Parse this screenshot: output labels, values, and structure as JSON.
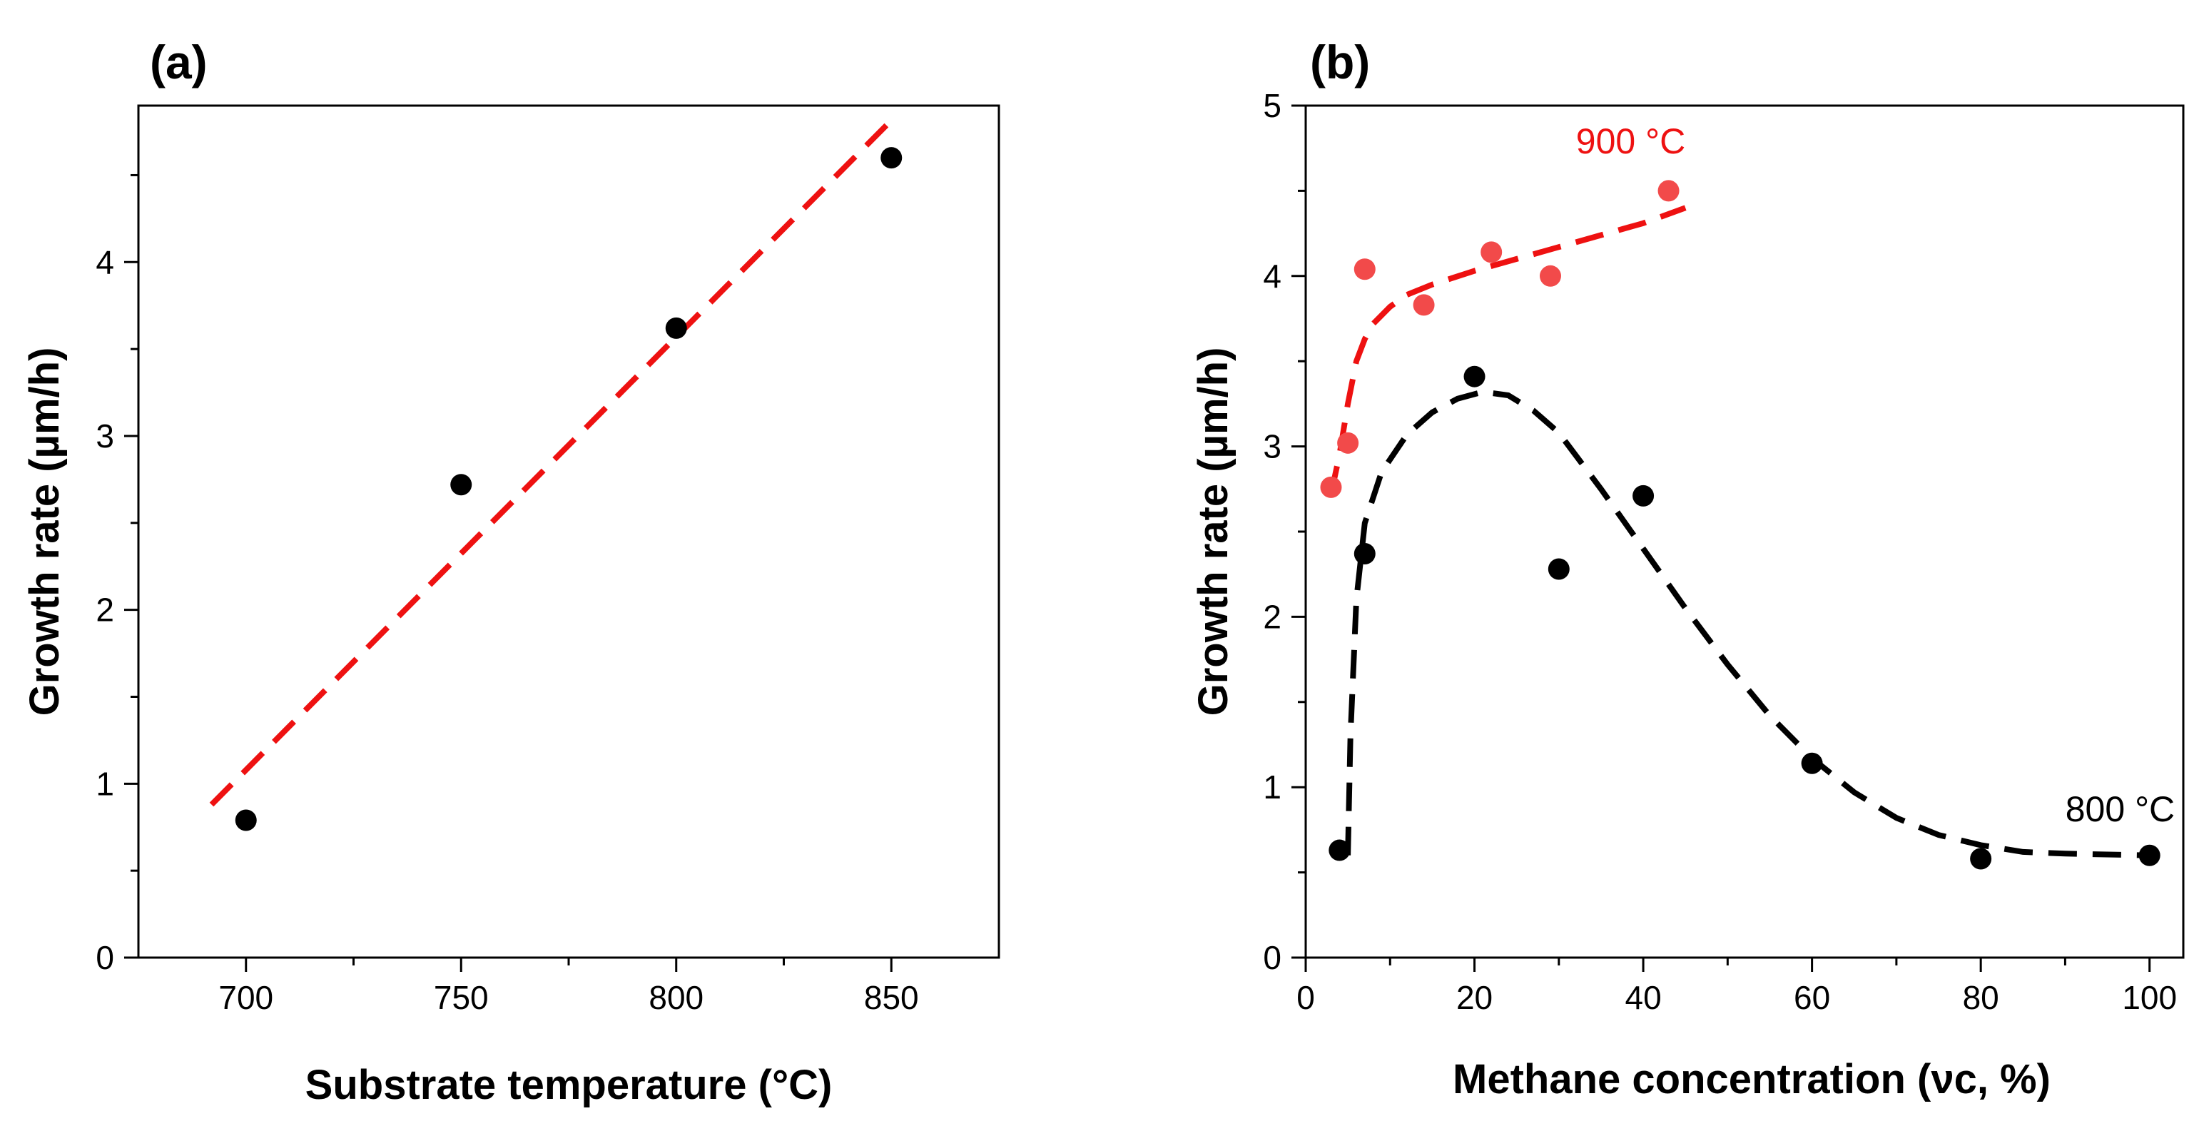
{
  "chart_data": [
    {
      "panel_label": "(a)",
      "type": "scatter",
      "xlabel": "Substrate temperature (°C)",
      "ylabel": "Growth rate (µm/h)",
      "xlim": [
        675,
        875
      ],
      "ylim": [
        0,
        4.9
      ],
      "x_ticks": [
        700,
        750,
        800,
        850
      ],
      "x_tick_labels": [
        "700",
        "750",
        "800",
        "850"
      ],
      "x_minor_ticks": [
        725,
        775,
        825
      ],
      "y_ticks": [
        0,
        1,
        2,
        3,
        4
      ],
      "y_tick_labels": [
        "0",
        "1",
        "2",
        "3",
        "4"
      ],
      "y_minor_ticks": [
        0.5,
        1.5,
        2.5,
        3.5,
        4.5
      ],
      "series": [
        {
          "name": "data",
          "color": "#000000",
          "points": [
            {
              "x": 700,
              "y": 0.79
            },
            {
              "x": 750,
              "y": 2.72
            },
            {
              "x": 800,
              "y": 3.62
            },
            {
              "x": 850,
              "y": 4.6
            }
          ]
        }
      ],
      "fits": [
        {
          "name": "linear fit",
          "color": "#ee1111",
          "points": [
            [
              692,
              0.88
            ],
            [
              851,
              4.84
            ]
          ]
        }
      ],
      "annotations": []
    },
    {
      "panel_label": "(b)",
      "type": "scatter",
      "xlabel": "Methane concentration (νc, %)",
      "ylabel": "Growth rate (µm/h)",
      "xlim": [
        0,
        104
      ],
      "ylim": [
        0,
        5
      ],
      "x_ticks": [
        0,
        20,
        40,
        60,
        80,
        100
      ],
      "x_tick_labels": [
        "0",
        "20",
        "40",
        "60",
        "80",
        "100"
      ],
      "x_minor_ticks": [
        10,
        30,
        50,
        70,
        90
      ],
      "y_ticks": [
        0,
        1,
        2,
        3,
        4,
        5
      ],
      "y_tick_labels": [
        "0",
        "1",
        "2",
        "3",
        "4",
        "5"
      ],
      "y_minor_ticks": [
        0.5,
        1.5,
        2.5,
        3.5,
        4.5
      ],
      "series": [
        {
          "name": "900 °C",
          "color": "#f24a4a",
          "points": [
            {
              "x": 3,
              "y": 2.76
            },
            {
              "x": 5,
              "y": 3.02
            },
            {
              "x": 7,
              "y": 4.04
            },
            {
              "x": 14,
              "y": 3.83
            },
            {
              "x": 22,
              "y": 4.14
            },
            {
              "x": 29,
              "y": 4.0
            },
            {
              "x": 43,
              "y": 4.5
            }
          ]
        },
        {
          "name": "800 °C",
          "color": "#000000",
          "points": [
            {
              "x": 4,
              "y": 0.63
            },
            {
              "x": 7,
              "y": 2.37
            },
            {
              "x": 20,
              "y": 3.41
            },
            {
              "x": 30,
              "y": 2.28
            },
            {
              "x": 40,
              "y": 2.71
            },
            {
              "x": 60,
              "y": 1.14
            },
            {
              "x": 80,
              "y": 0.58
            },
            {
              "x": 100,
              "y": 0.6
            }
          ]
        }
      ],
      "fits": [
        {
          "name": "900 °C fit",
          "color": "#ee1111",
          "points": [
            [
              3,
              2.72
            ],
            [
              4,
              2.95
            ],
            [
              5,
              3.25
            ],
            [
              6,
              3.5
            ],
            [
              7,
              3.63
            ],
            [
              8,
              3.72
            ],
            [
              10,
              3.82
            ],
            [
              12,
              3.89
            ],
            [
              15,
              3.95
            ],
            [
              20,
              4.03
            ],
            [
              25,
              4.1
            ],
            [
              30,
              4.17
            ],
            [
              35,
              4.24
            ],
            [
              40,
              4.31
            ],
            [
              45,
              4.4
            ]
          ]
        },
        {
          "name": "800 °C fit",
          "color": "#000000",
          "points": [
            [
              5,
              0.6
            ],
            [
              5.3,
              1.3
            ],
            [
              6,
              2.1
            ],
            [
              7,
              2.55
            ],
            [
              9,
              2.85
            ],
            [
              12,
              3.07
            ],
            [
              15,
              3.2
            ],
            [
              18,
              3.28
            ],
            [
              21,
              3.32
            ],
            [
              24,
              3.3
            ],
            [
              27,
              3.21
            ],
            [
              30,
              3.08
            ],
            [
              35,
              2.75
            ],
            [
              40,
              2.4
            ],
            [
              45,
              2.05
            ],
            [
              50,
              1.72
            ],
            [
              55,
              1.42
            ],
            [
              60,
              1.17
            ],
            [
              65,
              0.97
            ],
            [
              70,
              0.82
            ],
            [
              75,
              0.72
            ],
            [
              80,
              0.66
            ],
            [
              85,
              0.62
            ],
            [
              90,
              0.61
            ],
            [
              100,
              0.6
            ]
          ]
        }
      ],
      "annotations": [
        {
          "text": "900 °C",
          "color": "#ee1111",
          "x": 45,
          "y": 4.72
        },
        {
          "text": "800 °C",
          "color": "#000000",
          "x": 103,
          "y": 0.8
        }
      ]
    }
  ]
}
